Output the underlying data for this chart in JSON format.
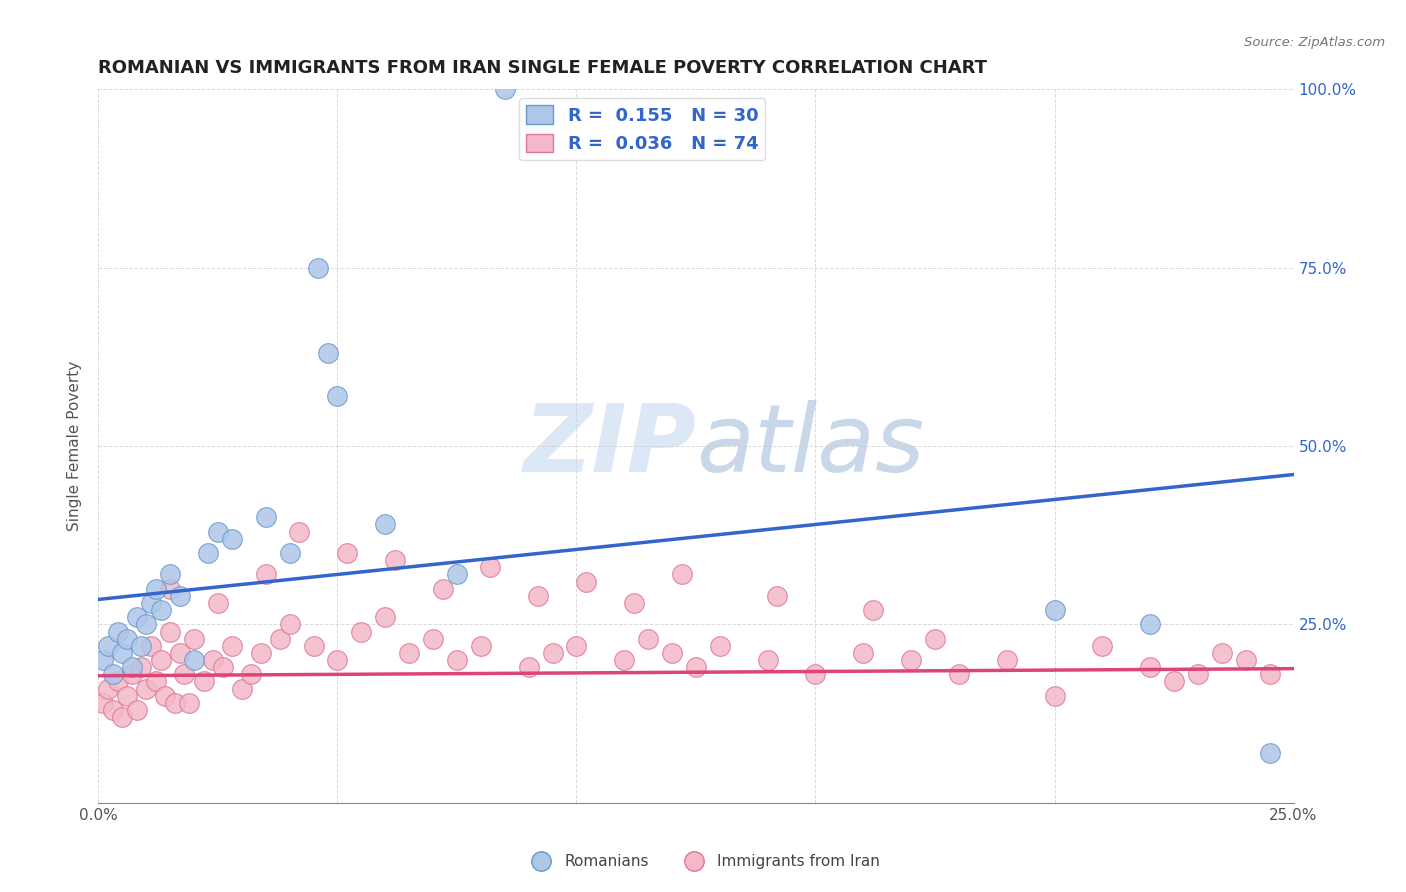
{
  "title": "ROMANIAN VS IMMIGRANTS FROM IRAN SINGLE FEMALE POVERTY CORRELATION CHART",
  "source": "Source: ZipAtlas.com",
  "ylabel": "Single Female Poverty",
  "xlim": [
    0,
    0.25
  ],
  "ylim": [
    0,
    1.0
  ],
  "xticks": [
    0.0,
    0.05,
    0.1,
    0.15,
    0.2,
    0.25
  ],
  "yticks": [
    0.0,
    0.25,
    0.5,
    0.75,
    1.0
  ],
  "background_color": "#ffffff",
  "grid_color": "#cccccc",
  "blue_line_color": "#3366cc",
  "pink_line_color": "#dd4477",
  "blue_fill_color": "#aec6e8",
  "blue_edge_color": "#6699cc",
  "pink_fill_color": "#f4b8c8",
  "pink_edge_color": "#dd7799",
  "right_axis_color": "#3366cc",
  "watermark_color": "#dce8f5",
  "blue_trend_x": [
    0.0,
    0.25
  ],
  "blue_trend_y": [
    0.285,
    0.46
  ],
  "pink_trend_x": [
    0.0,
    0.25
  ],
  "pink_trend_y": [
    0.178,
    0.188
  ],
  "blue_points_x": [
    0.001,
    0.002,
    0.003,
    0.004,
    0.005,
    0.006,
    0.007,
    0.008,
    0.009,
    0.01,
    0.011,
    0.012,
    0.013,
    0.015,
    0.017,
    0.02,
    0.023,
    0.025,
    0.028,
    0.035,
    0.04,
    0.046,
    0.048,
    0.05,
    0.06,
    0.075,
    0.085,
    0.2,
    0.22,
    0.245
  ],
  "blue_points_y": [
    0.2,
    0.22,
    0.18,
    0.24,
    0.21,
    0.23,
    0.19,
    0.26,
    0.22,
    0.25,
    0.28,
    0.3,
    0.27,
    0.32,
    0.29,
    0.2,
    0.35,
    0.38,
    0.37,
    0.4,
    0.35,
    0.75,
    0.63,
    0.57,
    0.39,
    0.32,
    1.0,
    0.27,
    0.25,
    0.07
  ],
  "pink_points_x": [
    0.001,
    0.002,
    0.003,
    0.004,
    0.005,
    0.006,
    0.007,
    0.008,
    0.009,
    0.01,
    0.011,
    0.012,
    0.013,
    0.014,
    0.015,
    0.016,
    0.017,
    0.018,
    0.019,
    0.02,
    0.022,
    0.024,
    0.026,
    0.028,
    0.03,
    0.032,
    0.034,
    0.038,
    0.04,
    0.045,
    0.05,
    0.055,
    0.06,
    0.065,
    0.07,
    0.075,
    0.08,
    0.09,
    0.095,
    0.1,
    0.11,
    0.115,
    0.12,
    0.125,
    0.13,
    0.14,
    0.15,
    0.16,
    0.17,
    0.175,
    0.18,
    0.19,
    0.2,
    0.21,
    0.22,
    0.225,
    0.23,
    0.235,
    0.24,
    0.245,
    0.015,
    0.025,
    0.035,
    0.042,
    0.052,
    0.062,
    0.072,
    0.082,
    0.092,
    0.102,
    0.112,
    0.122,
    0.142,
    0.162
  ],
  "pink_points_y": [
    0.14,
    0.16,
    0.13,
    0.17,
    0.12,
    0.15,
    0.18,
    0.13,
    0.19,
    0.16,
    0.22,
    0.17,
    0.2,
    0.15,
    0.24,
    0.14,
    0.21,
    0.18,
    0.14,
    0.23,
    0.17,
    0.2,
    0.19,
    0.22,
    0.16,
    0.18,
    0.21,
    0.23,
    0.25,
    0.22,
    0.2,
    0.24,
    0.26,
    0.21,
    0.23,
    0.2,
    0.22,
    0.19,
    0.21,
    0.22,
    0.2,
    0.23,
    0.21,
    0.19,
    0.22,
    0.2,
    0.18,
    0.21,
    0.2,
    0.23,
    0.18,
    0.2,
    0.15,
    0.22,
    0.19,
    0.17,
    0.18,
    0.21,
    0.2,
    0.18,
    0.3,
    0.28,
    0.32,
    0.38,
    0.35,
    0.34,
    0.3,
    0.33,
    0.29,
    0.31,
    0.28,
    0.32,
    0.29,
    0.27
  ]
}
